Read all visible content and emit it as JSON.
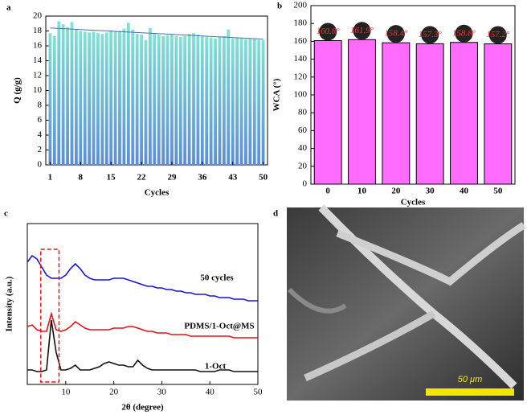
{
  "chart_data": [
    {
      "type": "bar",
      "panel": "a",
      "ylabel": "Q (g/g)",
      "xlabel": "Cycles",
      "x": [
        1,
        2,
        3,
        4,
        5,
        6,
        7,
        8,
        9,
        10,
        11,
        12,
        13,
        14,
        15,
        16,
        17,
        18,
        19,
        20,
        21,
        22,
        23,
        24,
        25,
        26,
        27,
        28,
        29,
        30,
        31,
        32,
        33,
        34,
        35,
        36,
        37,
        38,
        39,
        40,
        41,
        42,
        43,
        44,
        45,
        46,
        47,
        48,
        49,
        50
      ],
      "values": [
        17.7,
        17.3,
        19.3,
        18.9,
        18.5,
        19.2,
        18.2,
        18.0,
        17.9,
        17.8,
        17.9,
        17.7,
        17.6,
        17.8,
        18.1,
        17.9,
        18.0,
        18.3,
        19.1,
        18.2,
        17.6,
        17.5,
        16.8,
        18.4,
        17.7,
        17.5,
        17.3,
        17.4,
        17.5,
        17.3,
        17.2,
        17.3,
        17.6,
        17.7,
        17.5,
        17.3,
        17.2,
        17.1,
        17.0,
        17.2,
        17.3,
        18.2,
        17.0,
        17.1,
        17.0,
        16.9,
        17.0,
        16.9,
        16.8,
        16.8
      ],
      "colors": [
        "#80e2d6",
        "#5a8ed8"
      ],
      "trend_line": {
        "x": [
          1,
          50
        ],
        "y": [
          18.4,
          16.9
        ],
        "color": "#4a6fa8"
      },
      "xlim": [
        0,
        51
      ],
      "xticks": [
        1,
        8,
        15,
        22,
        29,
        36,
        43,
        50
      ],
      "ylim": [
        0,
        20
      ],
      "yticks": [
        0,
        2,
        4,
        6,
        8,
        10,
        12,
        14,
        16,
        18,
        20
      ]
    },
    {
      "type": "bar",
      "panel": "b",
      "ylabel": "WCA (°)",
      "xlabel": "Cycles",
      "categories": [
        "0",
        "10",
        "20",
        "30",
        "40",
        "50"
      ],
      "values": [
        160.8,
        161.9,
        158.4,
        157.3,
        158.8,
        157.2
      ],
      "value_labels": [
        "160.8°",
        "161.9°",
        "158.4°",
        "157.3°",
        "158.8°",
        "157.2°"
      ],
      "color": "#ff6cff",
      "ylim": [
        0,
        200
      ],
      "yticks": [
        0,
        20,
        40,
        60,
        80,
        100,
        120,
        140,
        160,
        180,
        200
      ]
    },
    {
      "type": "line",
      "panel": "c",
      "ylabel": "Intensity (a.u.)",
      "xlabel": "2θ (degree)",
      "x": [
        2,
        3,
        4,
        5,
        6,
        7,
        8,
        9,
        10,
        11,
        12,
        13,
        14,
        15,
        16,
        17,
        18,
        19,
        20,
        21,
        22,
        23,
        24,
        25,
        26,
        27,
        28,
        29,
        30,
        31,
        32,
        33,
        34,
        35,
        36,
        37,
        38,
        39,
        40,
        41,
        42,
        43,
        44,
        45,
        46,
        47,
        48,
        49,
        50
      ],
      "series": [
        {
          "name": "50 cycles",
          "color": "#1414e6",
          "values": [
            76,
            80,
            78,
            73,
            68,
            66,
            66,
            66,
            68,
            72,
            75,
            72,
            68,
            66,
            65,
            65,
            65,
            65,
            66,
            66,
            66,
            65,
            64,
            63,
            62,
            61,
            61,
            60,
            60,
            59,
            59,
            58,
            58,
            57,
            57,
            56,
            56,
            56,
            55,
            55,
            54,
            54,
            54,
            53,
            53,
            53,
            52,
            52,
            52
          ]
        },
        {
          "name": "PDMS/1-Oct@MS",
          "color": "#e61414",
          "values": [
            36,
            37,
            34,
            33,
            33,
            44,
            34,
            33,
            34,
            36,
            39,
            37,
            35,
            34,
            34,
            34,
            34,
            34,
            35,
            35,
            35,
            36,
            36,
            35,
            34,
            33,
            33,
            32,
            32,
            32,
            31,
            31,
            31,
            31,
            30,
            30,
            30,
            30,
            30,
            30,
            30,
            30,
            30,
            29,
            29,
            29,
            29,
            29,
            29
          ]
        },
        {
          "name": "1-Oct",
          "color": "#111111",
          "values": [
            9,
            9,
            8,
            8,
            9,
            40,
            20,
            9,
            9,
            10,
            12,
            9,
            9,
            9,
            10,
            11,
            13,
            14,
            13,
            12,
            12,
            11,
            11,
            15,
            12,
            10,
            9,
            9,
            9,
            9,
            9,
            9,
            9,
            9,
            9,
            9,
            8,
            8,
            8,
            8,
            9,
            9,
            9,
            8,
            8,
            8,
            8,
            8,
            8
          ]
        }
      ],
      "xlim": [
        2,
        50
      ],
      "xticks": [
        10,
        20,
        30,
        40,
        50
      ],
      "ylim": [
        0,
        100
      ]
    },
    {
      "type": "image",
      "panel": "d",
      "scale_bar": "50 μm"
    }
  ]
}
